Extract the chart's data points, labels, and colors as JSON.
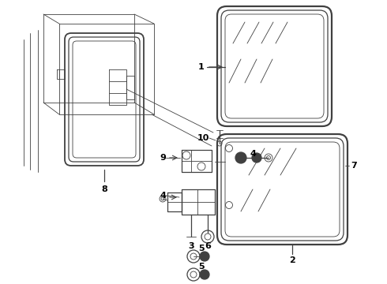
{
  "bg_color": "#ffffff",
  "line_color": "#404040",
  "label_color": "#000000",
  "figsize": [
    4.9,
    3.6
  ],
  "dpi": 100,
  "lw_main": 1.3,
  "lw_med": 0.9,
  "lw_thin": 0.6
}
